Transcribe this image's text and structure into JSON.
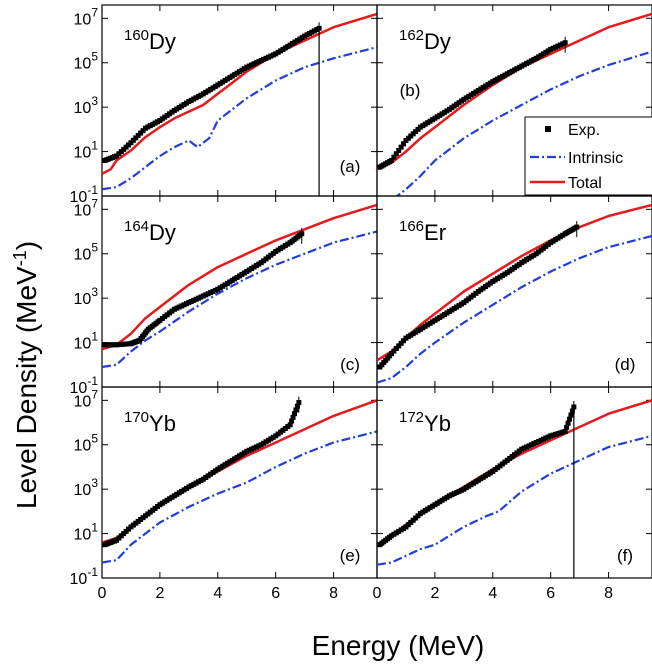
{
  "figure": {
    "xlabel": "Energy (MeV)",
    "ylabel": "Level Density (MeV",
    "ylabel_sup": "-1",
    "ylabel_close": ")",
    "legend": {
      "exp": "Exp.",
      "intrinsic": "Intrinsic",
      "total": "Total"
    },
    "colors": {
      "exp": "#000000",
      "intrinsic": "#1f3fd6",
      "total": "#e41a1c"
    }
  },
  "chart_data": [
    {
      "type": "scatter",
      "nucleus_mass": "160",
      "nucleus_symbol": "Dy",
      "panel_label": "(a)",
      "xlim": [
        0,
        9.5
      ],
      "ylim_log10": [
        -1,
        7.6
      ],
      "y_scale": "log",
      "xticks": [
        "0",
        "2",
        "4",
        "6",
        "8"
      ],
      "yticks": [
        {
          "base": "10",
          "exp": "7"
        },
        {
          "base": "10",
          "exp": "5"
        },
        {
          "base": "10",
          "exp": "3"
        },
        {
          "base": "10",
          "exp": "1"
        },
        {
          "base": "10",
          "exp": "-1"
        }
      ],
      "exp": {
        "x": [
          0.1,
          0.5,
          1.0,
          1.5,
          2.0,
          2.5,
          3.0,
          3.5,
          4.0,
          4.5,
          5.0,
          5.5,
          6.0,
          6.5,
          7.0,
          7.5
        ],
        "log10y": [
          0.6,
          0.8,
          1.4,
          2.05,
          2.4,
          2.85,
          3.25,
          3.6,
          4.0,
          4.4,
          4.8,
          5.1,
          5.4,
          5.8,
          6.2,
          6.55
        ]
      },
      "intrinsic": {
        "x": [
          0,
          0.5,
          1,
          1.5,
          2,
          2.5,
          3,
          3.3,
          3.7,
          4,
          4.5,
          5,
          6,
          7,
          8,
          9.5
        ],
        "log10y": [
          -0.7,
          -0.6,
          -0.2,
          0.3,
          0.8,
          1.2,
          1.5,
          1.2,
          1.6,
          2.4,
          2.9,
          3.4,
          4.2,
          4.8,
          5.2,
          5.7
        ]
      },
      "total": {
        "x": [
          0,
          0.3,
          0.5,
          1,
          1.5,
          2,
          2.5,
          3,
          3.5,
          4,
          4.5,
          5,
          6,
          7,
          8,
          9.5
        ],
        "log10y": [
          0,
          0.2,
          0.6,
          1.05,
          1.65,
          2.1,
          2.5,
          2.8,
          3.1,
          3.6,
          4.1,
          4.6,
          5.4,
          6.0,
          6.6,
          7.2
        ]
      }
    },
    {
      "type": "scatter",
      "nucleus_mass": "162",
      "nucleus_symbol": "Dy",
      "panel_label": "(b)",
      "xlim": [
        0,
        9.5
      ],
      "ylim_log10": [
        -1,
        7.6
      ],
      "y_scale": "log",
      "xticks": [
        "0",
        "2",
        "4",
        "6",
        "8"
      ],
      "yticks": [],
      "exp": {
        "x": [
          0.1,
          0.5,
          1.0,
          1.5,
          2.0,
          2.5,
          3.0,
          3.5,
          4.0,
          4.5,
          5.0,
          5.5,
          6.0,
          6.5
        ],
        "log10y": [
          0.3,
          0.6,
          1.5,
          2.1,
          2.5,
          2.9,
          3.35,
          3.75,
          4.15,
          4.5,
          4.85,
          5.2,
          5.6,
          5.9
        ]
      },
      "intrinsic": {
        "x": [
          0,
          0.5,
          1,
          1.5,
          2,
          3,
          4,
          5,
          6,
          7,
          8,
          9.5
        ],
        "log10y": [
          -1.4,
          -1.2,
          -0.7,
          -0.1,
          0.6,
          1.6,
          2.4,
          3.1,
          3.8,
          4.4,
          4.9,
          5.5
        ]
      },
      "total": {
        "x": [
          0,
          0.5,
          1,
          1.5,
          2,
          3,
          4,
          5,
          6,
          7,
          8,
          9.5
        ],
        "log10y": [
          0.2,
          0.5,
          1.0,
          1.6,
          2.1,
          3.1,
          4.0,
          4.8,
          5.4,
          6.0,
          6.6,
          7.2
        ]
      }
    },
    {
      "type": "scatter",
      "nucleus_mass": "164",
      "nucleus_symbol": "Dy",
      "panel_label": "(c)",
      "xlim": [
        0,
        9.5
      ],
      "ylim_log10": [
        -1,
        7.6
      ],
      "y_scale": "log",
      "xticks": [
        "0",
        "2",
        "4",
        "6",
        "8"
      ],
      "yticks": [
        {
          "base": "10",
          "exp": "7"
        },
        {
          "base": "10",
          "exp": "5"
        },
        {
          "base": "10",
          "exp": "3"
        },
        {
          "base": "10",
          "exp": "1"
        },
        {
          "base": "10",
          "exp": "-1"
        }
      ],
      "exp": {
        "x": [
          0.1,
          0.5,
          1.0,
          1.3,
          1.6,
          2.0,
          2.5,
          3.0,
          3.5,
          4.0,
          4.5,
          5.0,
          5.5,
          6.0,
          6.5,
          6.9
        ],
        "log10y": [
          0.9,
          0.9,
          0.95,
          1.1,
          1.6,
          2.0,
          2.5,
          2.8,
          3.1,
          3.4,
          3.8,
          4.2,
          4.6,
          5.1,
          5.5,
          5.9
        ]
      },
      "intrinsic": {
        "x": [
          0,
          0.5,
          1,
          1.5,
          2,
          3,
          4,
          5,
          6,
          7,
          8,
          9.5
        ],
        "log10y": [
          -0.1,
          0.0,
          0.6,
          1.1,
          1.5,
          2.4,
          3.2,
          3.9,
          4.5,
          5.0,
          5.5,
          6.0
        ]
      },
      "total": {
        "x": [
          0,
          0.5,
          1,
          1.5,
          2,
          3,
          4,
          5,
          6,
          7,
          8,
          9.5
        ],
        "log10y": [
          0.7,
          0.9,
          1.4,
          2.1,
          2.6,
          3.6,
          4.4,
          5.0,
          5.6,
          6.1,
          6.6,
          7.2
        ]
      }
    },
    {
      "type": "scatter",
      "nucleus_mass": "166",
      "nucleus_symbol": "Er",
      "panel_label": "(d)",
      "xlim": [
        0,
        9.5
      ],
      "ylim_log10": [
        -1,
        7.6
      ],
      "y_scale": "log",
      "xticks": [
        "0",
        "2",
        "4",
        "6",
        "8"
      ],
      "yticks": [],
      "exp": {
        "x": [
          0.1,
          0.5,
          1.0,
          1.5,
          2.0,
          2.5,
          3.0,
          3.5,
          4.0,
          4.5,
          5.0,
          5.5,
          6.0,
          6.5,
          6.9
        ],
        "log10y": [
          -0.1,
          0.5,
          1.2,
          1.6,
          2.0,
          2.4,
          2.8,
          3.3,
          3.75,
          4.15,
          4.6,
          5.0,
          5.5,
          5.9,
          6.2
        ]
      },
      "intrinsic": {
        "x": [
          0,
          0.5,
          1,
          1.5,
          2,
          3,
          4,
          5,
          6,
          7,
          8,
          9.5
        ],
        "log10y": [
          -0.8,
          -0.6,
          -0.1,
          0.5,
          1.0,
          1.9,
          2.7,
          3.5,
          4.2,
          4.8,
          5.3,
          5.8
        ]
      },
      "total": {
        "x": [
          0,
          0.5,
          1,
          1.5,
          2,
          3,
          4,
          5,
          6,
          7,
          8,
          9.5
        ],
        "log10y": [
          0.2,
          0.6,
          1.2,
          1.8,
          2.3,
          3.3,
          4.1,
          4.9,
          5.6,
          6.2,
          6.7,
          7.2
        ]
      }
    },
    {
      "type": "scatter",
      "nucleus_mass": "170",
      "nucleus_symbol": "Yb",
      "panel_label": "(e)",
      "xlim": [
        0,
        9.5
      ],
      "ylim_log10": [
        -1,
        7.6
      ],
      "y_scale": "log",
      "xticks": [
        "0",
        "2",
        "4",
        "6",
        "8"
      ],
      "yticks": [
        {
          "base": "10",
          "exp": "7"
        },
        {
          "base": "10",
          "exp": "5"
        },
        {
          "base": "10",
          "exp": "3"
        },
        {
          "base": "10",
          "exp": "1"
        },
        {
          "base": "10",
          "exp": "-1"
        }
      ],
      "exp": {
        "x": [
          0.1,
          0.5,
          1.0,
          1.5,
          2.0,
          2.5,
          3.0,
          3.5,
          4.0,
          4.5,
          5.0,
          5.5,
          6.0,
          6.5,
          6.8
        ],
        "log10y": [
          0.5,
          0.7,
          1.3,
          1.8,
          2.3,
          2.7,
          3.1,
          3.45,
          3.9,
          4.3,
          4.7,
          5.0,
          5.4,
          5.9,
          6.9
        ]
      },
      "intrinsic": {
        "x": [
          0,
          0.5,
          1,
          1.5,
          2,
          3,
          4,
          5,
          6,
          7,
          8,
          9.5
        ],
        "log10y": [
          -0.3,
          -0.2,
          0.5,
          1.0,
          1.5,
          2.2,
          2.8,
          3.3,
          4.0,
          4.6,
          5.1,
          5.6
        ]
      },
      "total": {
        "x": [
          0,
          0.5,
          1,
          1.5,
          2,
          3,
          4,
          5,
          6,
          7,
          8,
          9.5
        ],
        "log10y": [
          0.6,
          0.8,
          1.3,
          1.8,
          2.3,
          3.1,
          3.8,
          4.5,
          5.1,
          5.7,
          6.3,
          7.0
        ]
      }
    },
    {
      "type": "scatter",
      "nucleus_mass": "172",
      "nucleus_symbol": "Yb",
      "panel_label": "(f)",
      "xlim": [
        0,
        9.5
      ],
      "ylim_log10": [
        -1,
        7.6
      ],
      "y_scale": "log",
      "xticks": [
        "0",
        "2",
        "4",
        "6",
        "8"
      ],
      "yticks": [],
      "exp": {
        "x": [
          0.1,
          0.5,
          1.0,
          1.5,
          2.0,
          2.5,
          3.0,
          3.5,
          4.0,
          4.5,
          5.0,
          5.5,
          6.0,
          6.5,
          6.8
        ],
        "log10y": [
          0.5,
          0.9,
          1.3,
          1.9,
          2.3,
          2.7,
          3.0,
          3.4,
          3.8,
          4.3,
          4.8,
          5.1,
          5.4,
          5.6,
          6.7
        ]
      },
      "intrinsic": {
        "x": [
          0,
          0.5,
          1,
          1.5,
          2,
          3,
          3.8,
          4.2,
          5,
          6,
          7,
          8,
          9.5
        ],
        "log10y": [
          -0.4,
          -0.3,
          0.0,
          0.3,
          0.5,
          1.3,
          1.8,
          2.0,
          2.9,
          3.7,
          4.3,
          4.9,
          5.4
        ]
      },
      "total": {
        "x": [
          0,
          0.5,
          1,
          1.5,
          2,
          3,
          4,
          5,
          6,
          7,
          8,
          9.5
        ],
        "log10y": [
          0.5,
          0.9,
          1.4,
          1.9,
          2.3,
          3.1,
          3.9,
          4.6,
          5.2,
          5.8,
          6.4,
          7.0
        ]
      }
    }
  ]
}
